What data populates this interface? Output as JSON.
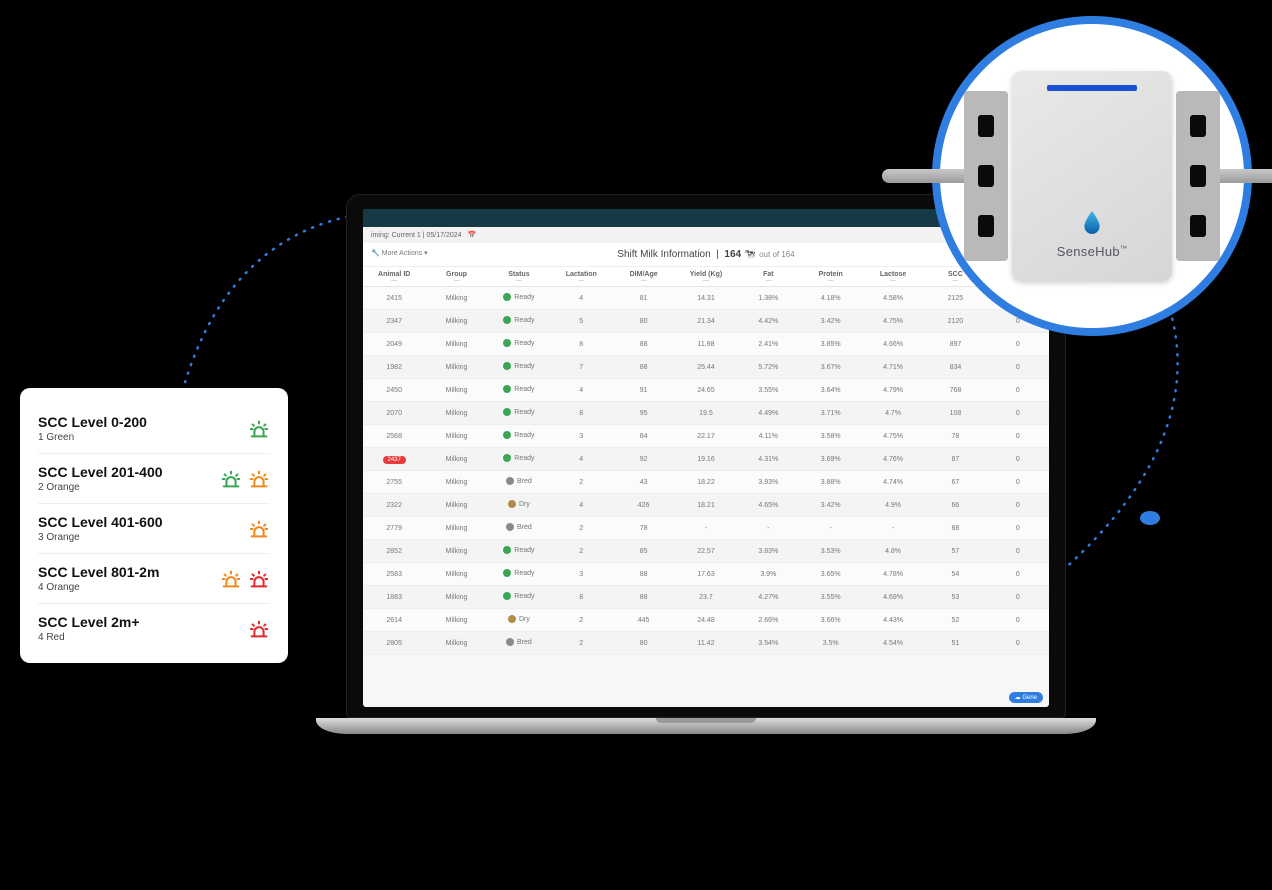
{
  "colors": {
    "accent_blue": "#2f7de1",
    "green": "#3aa655",
    "orange": "#f0891b",
    "red": "#e22b2b",
    "topbar": "#163a45",
    "screen_bg": "#f7f7f7"
  },
  "legend": {
    "rows": [
      {
        "title": "SCC Level 0-200",
        "sub": "1 Green",
        "icons": [
          "green"
        ]
      },
      {
        "title": "SCC Level 201-400",
        "sub": "2 Orange",
        "icons": [
          "green",
          "orange"
        ]
      },
      {
        "title": "SCC Level 401-600",
        "sub": "3 Orange",
        "icons": [
          "orange"
        ]
      },
      {
        "title": "SCC Level 801-2m",
        "sub": "4 Orange",
        "icons": [
          "orange",
          "red"
        ]
      },
      {
        "title": "SCC Level 2m+",
        "sub": "4 Red",
        "icons": [
          "red"
        ]
      }
    ]
  },
  "device": {
    "brand": "SenseHub",
    "tm": "™"
  },
  "dashboard": {
    "header_left": "iming: Current 1 | 05/17/2024",
    "more_actions": "More Actions",
    "title": "Shift Milk Information",
    "count": "164",
    "count_suffix": "out of 164",
    "columns": [
      "Animal ID",
      "Group",
      "Status",
      "Lactation",
      "DIM/Age",
      "Yield (Kg)",
      "Fat",
      "Protein",
      "Lactose",
      "SCC",
      ""
    ],
    "col_sub": "—",
    "status_styles": {
      "Ready": {
        "color": "#3aa655"
      },
      "Bred": {
        "color": "#8a8a8a"
      },
      "Dry": {
        "color": "#b28b4a"
      }
    },
    "rows": [
      {
        "id": "2415",
        "flag": false,
        "group": "Milking",
        "status": "Ready",
        "lact": "4",
        "dim": "81",
        "yield": "14.31",
        "fat": "1.38%",
        "prot": "4.18%",
        "lac": "4.58%",
        "scc": "2125",
        "last": "0"
      },
      {
        "id": "2347",
        "flag": false,
        "group": "Milking",
        "status": "Ready",
        "lact": "5",
        "dim": "80",
        "yield": "21.34",
        "fat": "4.42%",
        "prot": "3.42%",
        "lac": "4.75%",
        "scc": "2120",
        "last": "0"
      },
      {
        "id": "2049",
        "flag": false,
        "group": "Milking",
        "status": "Ready",
        "lact": "8",
        "dim": "88",
        "yield": "11.98",
        "fat": "2.41%",
        "prot": "3.85%",
        "lac": "4.66%",
        "scc": "897",
        "last": "0"
      },
      {
        "id": "1982",
        "flag": false,
        "group": "Milking",
        "status": "Ready",
        "lact": "7",
        "dim": "88",
        "yield": "25.44",
        "fat": "5.72%",
        "prot": "3.67%",
        "lac": "4.71%",
        "scc": "834",
        "last": "0"
      },
      {
        "id": "2450",
        "flag": false,
        "group": "Milking",
        "status": "Ready",
        "lact": "4",
        "dim": "91",
        "yield": "24.65",
        "fat": "3.55%",
        "prot": "3.64%",
        "lac": "4.79%",
        "scc": "768",
        "last": "0"
      },
      {
        "id": "2070",
        "flag": false,
        "group": "Milking",
        "status": "Ready",
        "lact": "8",
        "dim": "95",
        "yield": "19.5",
        "fat": "4.49%",
        "prot": "3.71%",
        "lac": "4.7%",
        "scc": "108",
        "last": "0"
      },
      {
        "id": "2568",
        "flag": false,
        "group": "Milking",
        "status": "Ready",
        "lact": "3",
        "dim": "84",
        "yield": "22.17",
        "fat": "4.11%",
        "prot": "3.58%",
        "lac": "4.75%",
        "scc": "78",
        "last": "0"
      },
      {
        "id": "2437",
        "flag": true,
        "group": "Milking",
        "status": "Ready",
        "lact": "4",
        "dim": "92",
        "yield": "19.16",
        "fat": "4.31%",
        "prot": "3.69%",
        "lac": "4.76%",
        "scc": "87",
        "last": "0"
      },
      {
        "id": "2755",
        "flag": false,
        "group": "Milking",
        "status": "Bred",
        "lact": "2",
        "dim": "43",
        "yield": "18.22",
        "fat": "3.93%",
        "prot": "3.88%",
        "lac": "4.74%",
        "scc": "67",
        "last": "0"
      },
      {
        "id": "2322",
        "flag": false,
        "group": "Milking",
        "status": "Dry",
        "lact": "4",
        "dim": "426",
        "yield": "18.21",
        "fat": "4.65%",
        "prot": "3.42%",
        "lac": "4.9%",
        "scc": "66",
        "last": "0"
      },
      {
        "id": "2779",
        "flag": false,
        "group": "Milking",
        "status": "Bred",
        "lact": "2",
        "dim": "78",
        "yield": "-",
        "fat": "-",
        "prot": "-",
        "lac": "-",
        "scc": "88",
        "last": "0"
      },
      {
        "id": "2852",
        "flag": false,
        "group": "Milking",
        "status": "Ready",
        "lact": "2",
        "dim": "85",
        "yield": "22.57",
        "fat": "3.83%",
        "prot": "3.53%",
        "lac": "4.8%",
        "scc": "57",
        "last": "0"
      },
      {
        "id": "2583",
        "flag": false,
        "group": "Milking",
        "status": "Ready",
        "lact": "3",
        "dim": "88",
        "yield": "17.63",
        "fat": "3.9%",
        "prot": "3.65%",
        "lac": "4.78%",
        "scc": "54",
        "last": "0"
      },
      {
        "id": "1883",
        "flag": false,
        "group": "Milking",
        "status": "Ready",
        "lact": "8",
        "dim": "88",
        "yield": "23.7",
        "fat": "4.27%",
        "prot": "3.55%",
        "lac": "4.69%",
        "scc": "53",
        "last": "0"
      },
      {
        "id": "2614",
        "flag": false,
        "group": "Milking",
        "status": "Dry",
        "lact": "2",
        "dim": "445",
        "yield": "24.48",
        "fat": "2.66%",
        "prot": "3.66%",
        "lac": "4.43%",
        "scc": "52",
        "last": "0"
      },
      {
        "id": "2805",
        "flag": false,
        "group": "Milking",
        "status": "Bred",
        "lact": "2",
        "dim": "80",
        "yield": "11.42",
        "fat": "3.54%",
        "prot": "3.5%",
        "lac": "4.54%",
        "scc": "51",
        "last": "0"
      }
    ],
    "bottom_button": "Gene"
  }
}
